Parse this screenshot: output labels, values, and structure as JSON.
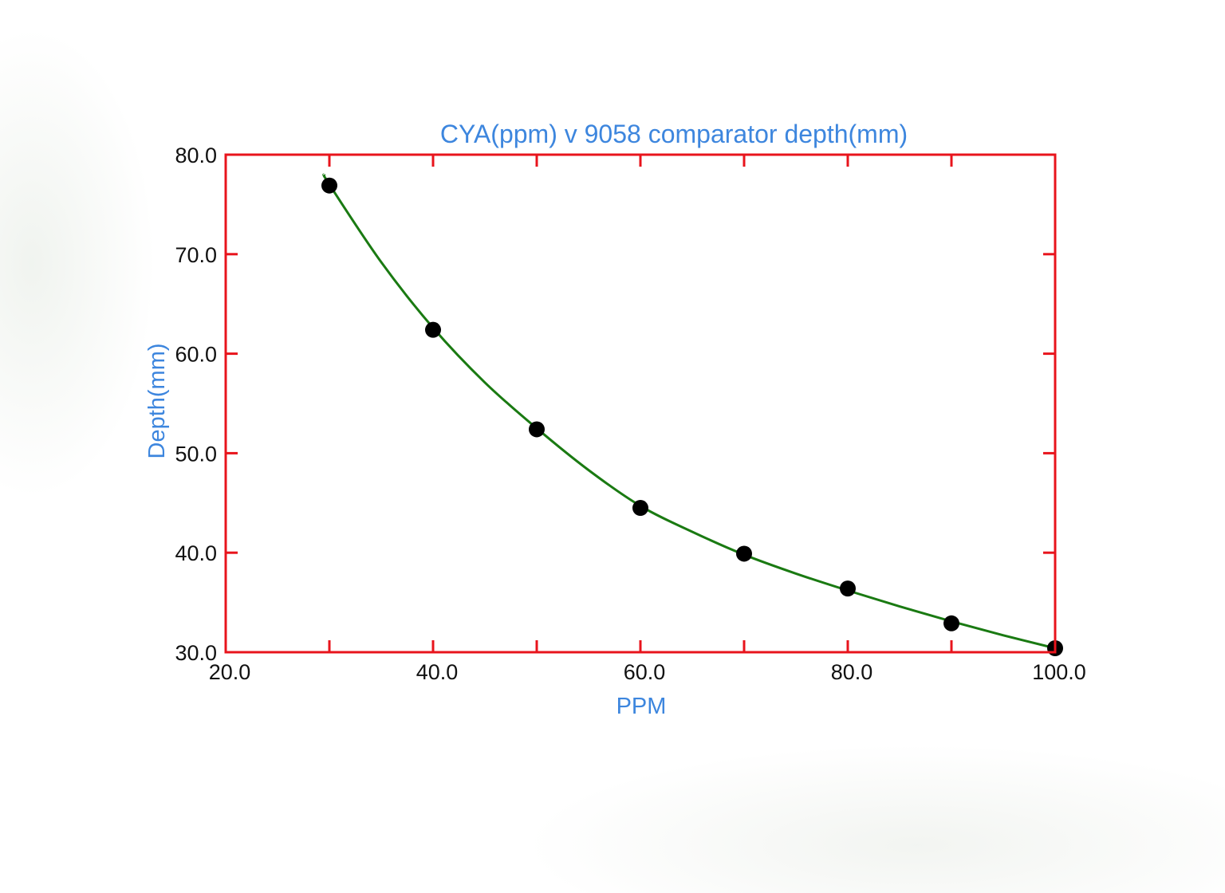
{
  "chart_data": {
    "type": "scatter",
    "title": "CYA(ppm) v 9058 comparator depth(mm)",
    "xlabel": "PPM",
    "ylabel": "Depth(mm)",
    "xlim": [
      20,
      100
    ],
    "ylim": [
      30,
      80
    ],
    "x_ticks": [
      "20.0",
      "40.0",
      "60.0",
      "80.0",
      "100.0"
    ],
    "y_ticks": [
      "80.0",
      "70.0",
      "60.0",
      "50.0",
      "40.0",
      "30.0"
    ],
    "grid": false,
    "series": [
      {
        "kind": "points",
        "x": [
          30,
          40,
          50,
          60,
          70,
          80,
          90,
          100
        ],
        "y": [
          76.9,
          62.4,
          52.4,
          44.5,
          39.9,
          36.4,
          32.9,
          30.4
        ]
      },
      {
        "kind": "fit-curve",
        "x": [
          29.5,
          30,
          35,
          40,
          45,
          50,
          55,
          60,
          65,
          70,
          75,
          80,
          85,
          90,
          95,
          100
        ],
        "y": [
          78.0,
          77.0,
          69.2,
          62.6,
          57.1,
          52.5,
          48.3,
          44.7,
          42.1,
          39.8,
          37.9,
          36.2,
          34.6,
          33.1,
          31.7,
          30.4
        ]
      }
    ],
    "colors": {
      "frame": "#e8141c",
      "fit_line": "#1a7a12",
      "points": "#000000",
      "title": "#3d86de",
      "axis_label": "#3d86de",
      "tick_text": "#111111"
    }
  }
}
